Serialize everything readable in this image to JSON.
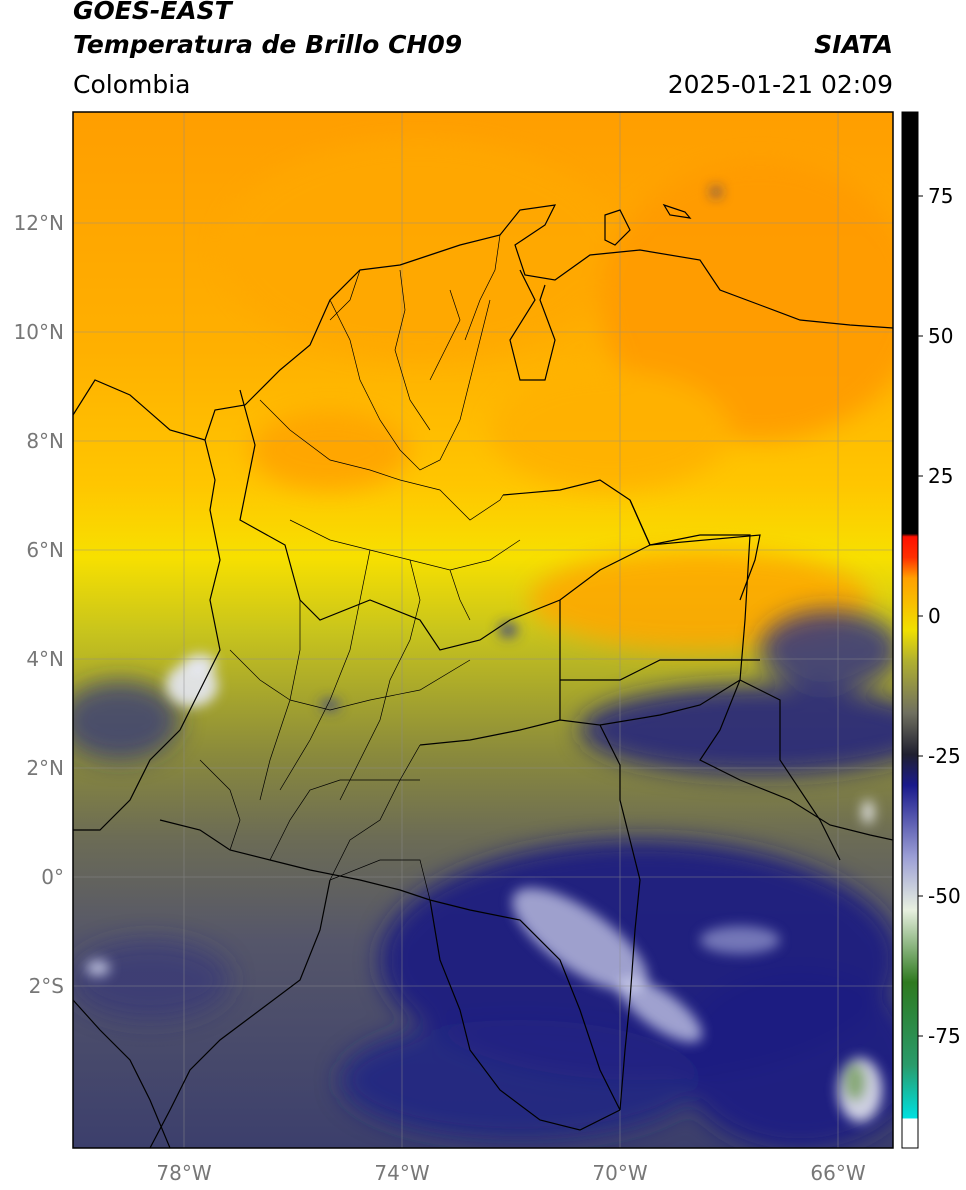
{
  "header": {
    "satellite": "GOES-EAST",
    "product": "Temperatura de Brillo CH09",
    "region": "Colombia",
    "agency": "SIATA",
    "datetime": "2025-01-21 02:09"
  },
  "map": {
    "lat_labels": [
      "12°N",
      "10°N",
      "8°N",
      "6°N",
      "4°N",
      "2°N",
      "0°",
      "2°S"
    ],
    "lon_labels": [
      "78°W",
      "74°W",
      "70°W",
      "66°W"
    ],
    "colors": {
      "warm_orange": "#ffa500",
      "yellow": "#ffe100",
      "olive": "#b7b526",
      "gray": "#6b6b5a",
      "cold_blue": "#1c1f86",
      "cold_white": "#d6d9f2"
    }
  },
  "colorbar": {
    "tick_labels": [
      "75",
      "50",
      "25",
      "0",
      "-25",
      "-50",
      "-75"
    ],
    "range": [
      -95,
      90
    ],
    "colors": [
      "#ffffff",
      "#00e0e0",
      "#2a9b6b",
      "#2e7a1f",
      "#e8f0e0",
      "#9da0d6",
      "#1a1a8c",
      "#202030",
      "#707060",
      "#b0b030",
      "#f0e000",
      "#ffa000",
      "#ff1000",
      "#000000"
    ]
  }
}
